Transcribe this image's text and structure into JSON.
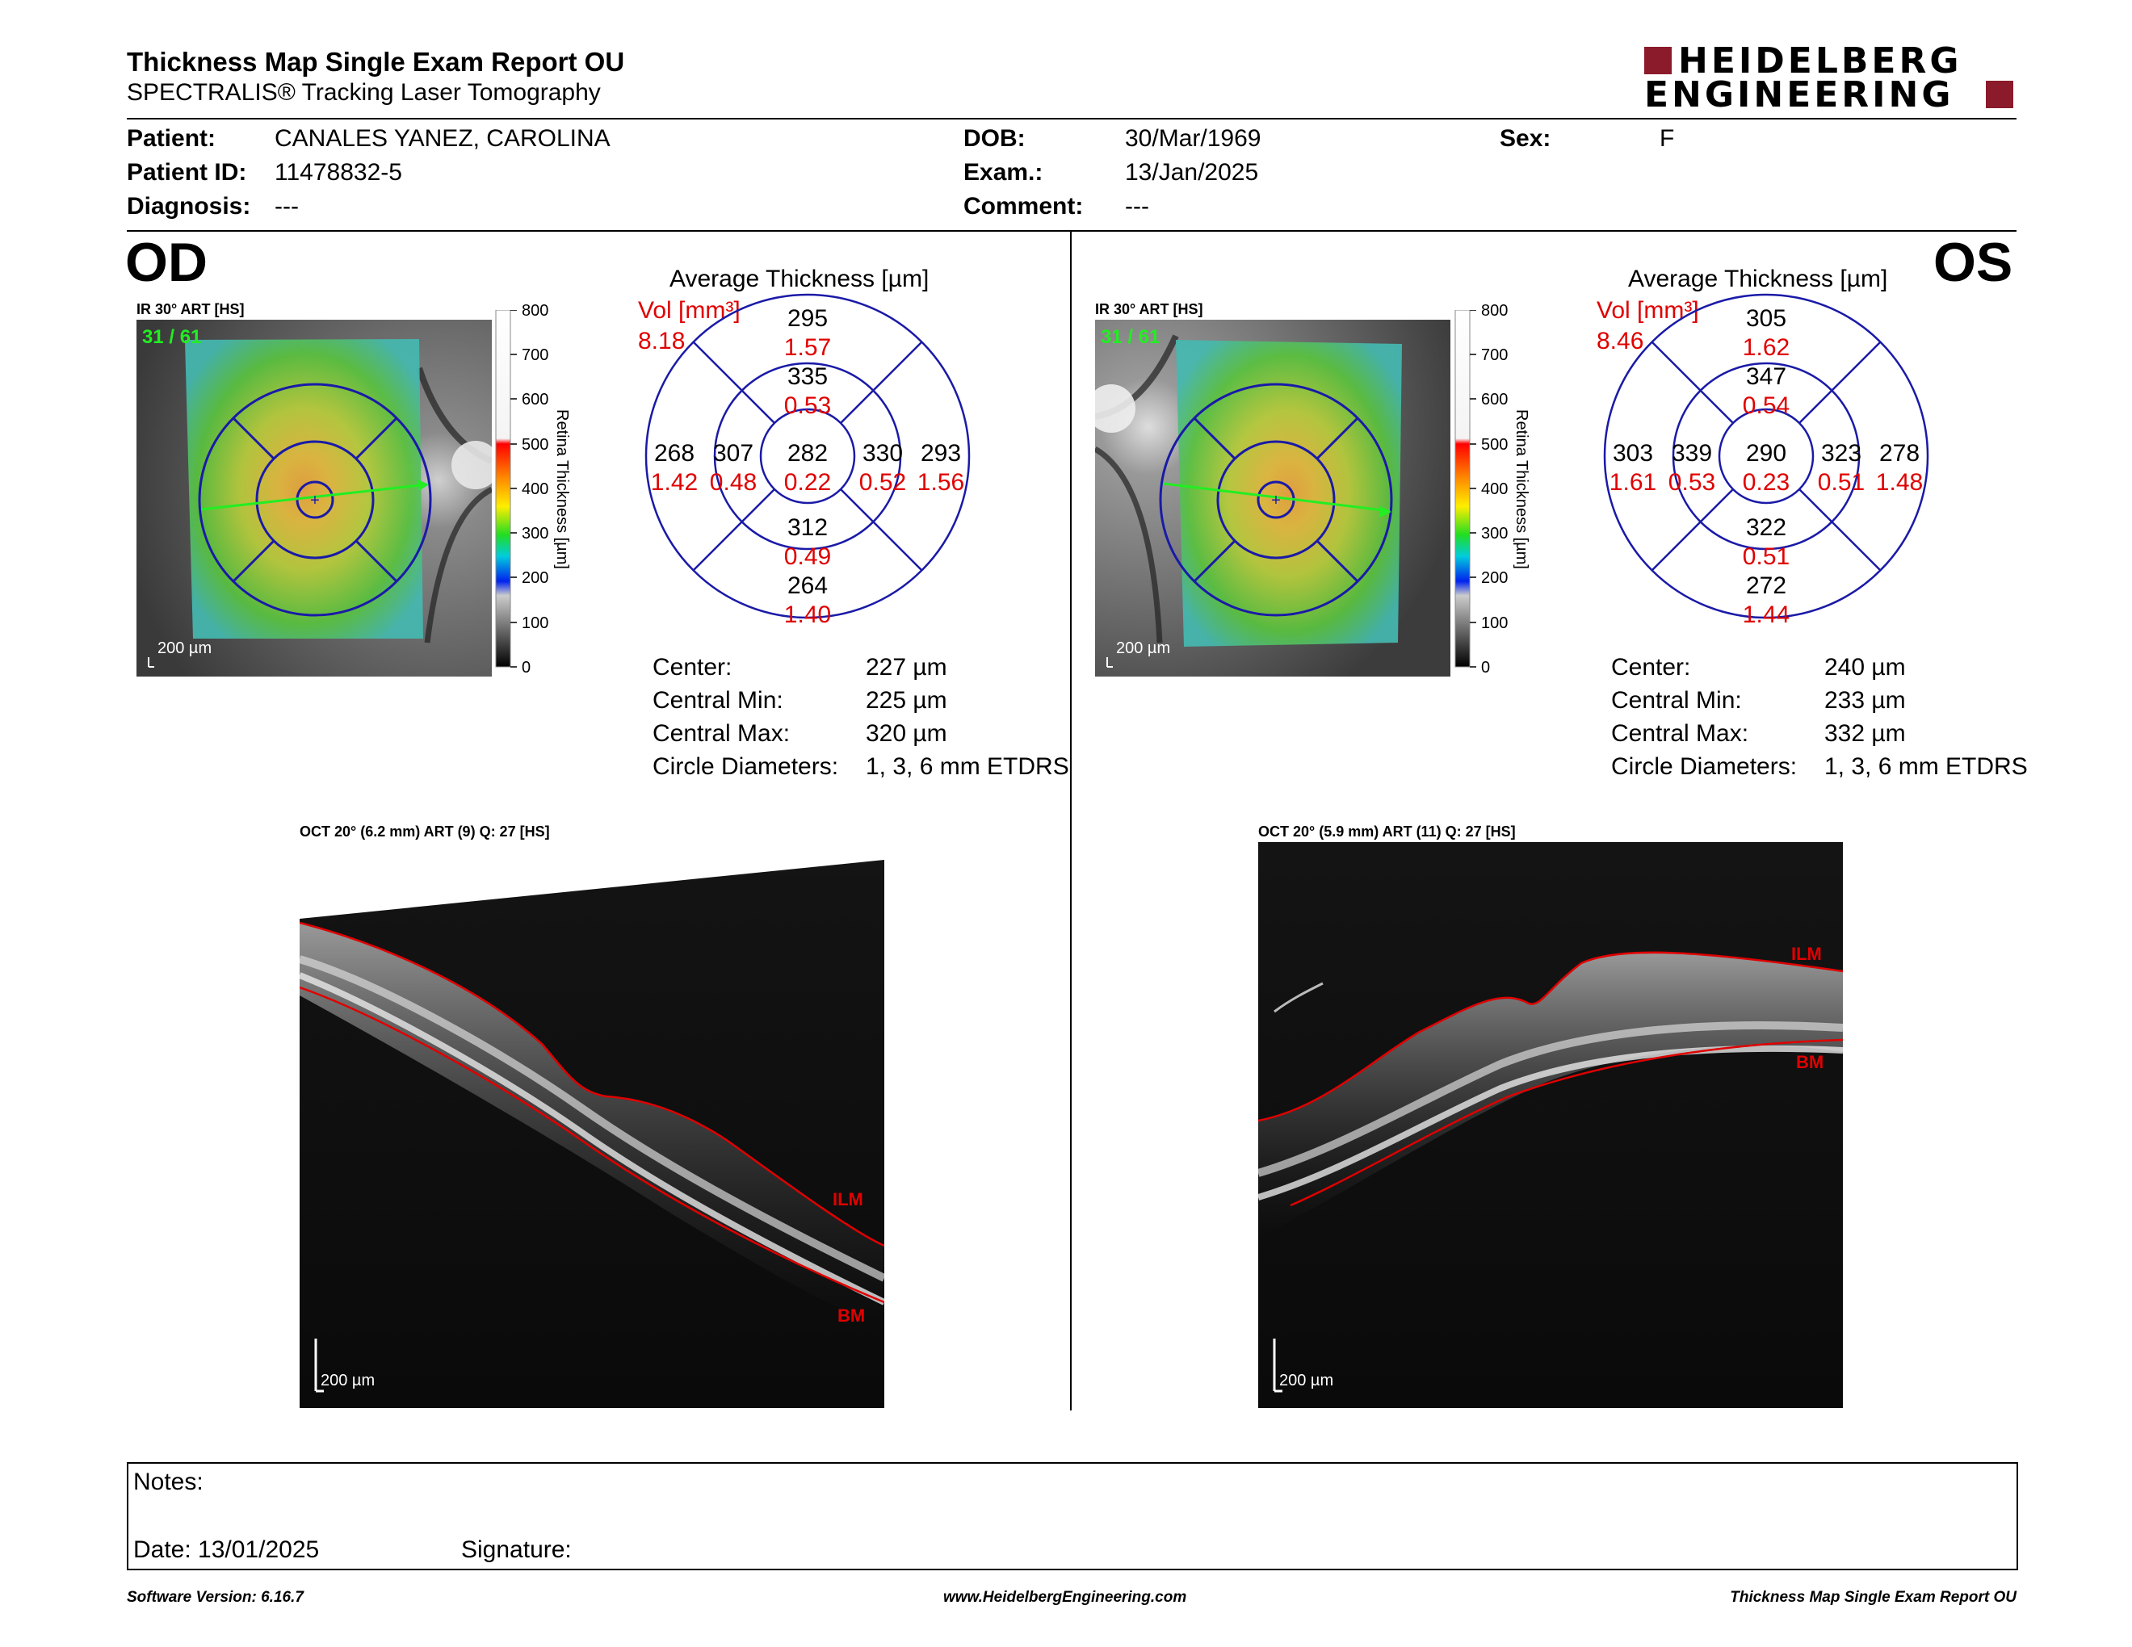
{
  "header": {
    "title": "Thickness Map Single Exam Report OU",
    "subtitle": "SPECTRALIS® Tracking Laser Tomography",
    "logo_line1": "HEIDELBERG",
    "logo_line2": "ENGINEERING"
  },
  "patient": {
    "patient_label": "Patient:",
    "patient_value": "CANALES YANEZ, CAROLINA",
    "id_label": "Patient ID:",
    "id_value": "11478832-5",
    "diagnosis_label": "Diagnosis:",
    "diagnosis_value": "---",
    "dob_label": "DOB:",
    "dob_value": "30/Mar/1969",
    "exam_label": "Exam.:",
    "exam_value": "13/Jan/2025",
    "comment_label": "Comment:",
    "comment_value": "---",
    "sex_label": "Sex:",
    "sex_value": "F"
  },
  "scale": {
    "ticks": [
      "800",
      "700",
      "600",
      "500",
      "400",
      "300",
      "200",
      "100",
      "0"
    ],
    "label": "Retina Thickness [µm]"
  },
  "stats_labels": {
    "center": "Center:",
    "min": "Central Min:",
    "max": "Central Max:",
    "diam": "Circle Diameters:"
  },
  "od": {
    "eye": "OD",
    "ir_caption": "IR 30° ART [HS]",
    "ir_counter": "31 / 61",
    "ir_scale": "200 µm",
    "avg_title": "Average Thickness [µm]",
    "vol_label": "Vol [mm³]",
    "vol_value": "8.18",
    "sectors": {
      "outer_sup": {
        "t": "295",
        "v": "1.57"
      },
      "inner_sup": {
        "t": "335",
        "v": "0.53"
      },
      "outer_temp": {
        "t": "268",
        "v": "1.42"
      },
      "inner_temp": {
        "t": "307",
        "v": "0.48"
      },
      "center": {
        "t": "282",
        "v": "0.22"
      },
      "inner_nas": {
        "t": "330",
        "v": "0.52"
      },
      "outer_nas": {
        "t": "293",
        "v": "1.56"
      },
      "inner_inf": {
        "t": "312",
        "v": "0.49"
      },
      "outer_inf": {
        "t": "264",
        "v": "1.40"
      }
    },
    "center_val": "227 µm",
    "min_val": "225 µm",
    "max_val": "320 µm",
    "diam_val": "1, 3, 6 mm ETDRS",
    "oct_caption": "OCT 20° (6.2 mm) ART (9) Q: 27 [HS]",
    "ilm": "ILM",
    "bm": "BM",
    "oct_scale": "200 µm"
  },
  "os": {
    "eye": "OS",
    "ir_caption": "IR 30° ART [HS]",
    "ir_counter": "31 / 61",
    "ir_scale": "200 µm",
    "avg_title": "Average Thickness [µm]",
    "vol_label": "Vol [mm³]",
    "vol_value": "8.46",
    "sectors": {
      "outer_sup": {
        "t": "305",
        "v": "1.62"
      },
      "inner_sup": {
        "t": "347",
        "v": "0.54"
      },
      "outer_temp": {
        "t": "303",
        "v": "1.61"
      },
      "inner_temp": {
        "t": "339",
        "v": "0.53"
      },
      "center": {
        "t": "290",
        "v": "0.23"
      },
      "inner_nas": {
        "t": "323",
        "v": "0.51"
      },
      "outer_nas": {
        "t": "278",
        "v": "1.48"
      },
      "inner_inf": {
        "t": "322",
        "v": "0.51"
      },
      "outer_inf": {
        "t": "272",
        "v": "1.44"
      }
    },
    "center_val": "240 µm",
    "min_val": "233 µm",
    "max_val": "332 µm",
    "diam_val": "1, 3, 6 mm ETDRS",
    "oct_caption": "OCT 20° (5.9 mm) ART (11) Q: 27 [HS]",
    "ilm": "ILM",
    "bm": "BM",
    "oct_scale": "200 µm"
  },
  "notes": {
    "notes_label": "Notes:",
    "date_label": "Date: 13/01/2025",
    "signature_label": "Signature:"
  },
  "footer": {
    "software": "Software Version: 6.16.7",
    "url": "www.HeidelbergEngineering.com",
    "report": "Thickness Map Single Exam Report OU"
  },
  "colors": {
    "ring_blue": "#1a1aa8",
    "red": "#e00000",
    "logo_red": "#8b1a2b",
    "green_label": "#22ee22"
  }
}
